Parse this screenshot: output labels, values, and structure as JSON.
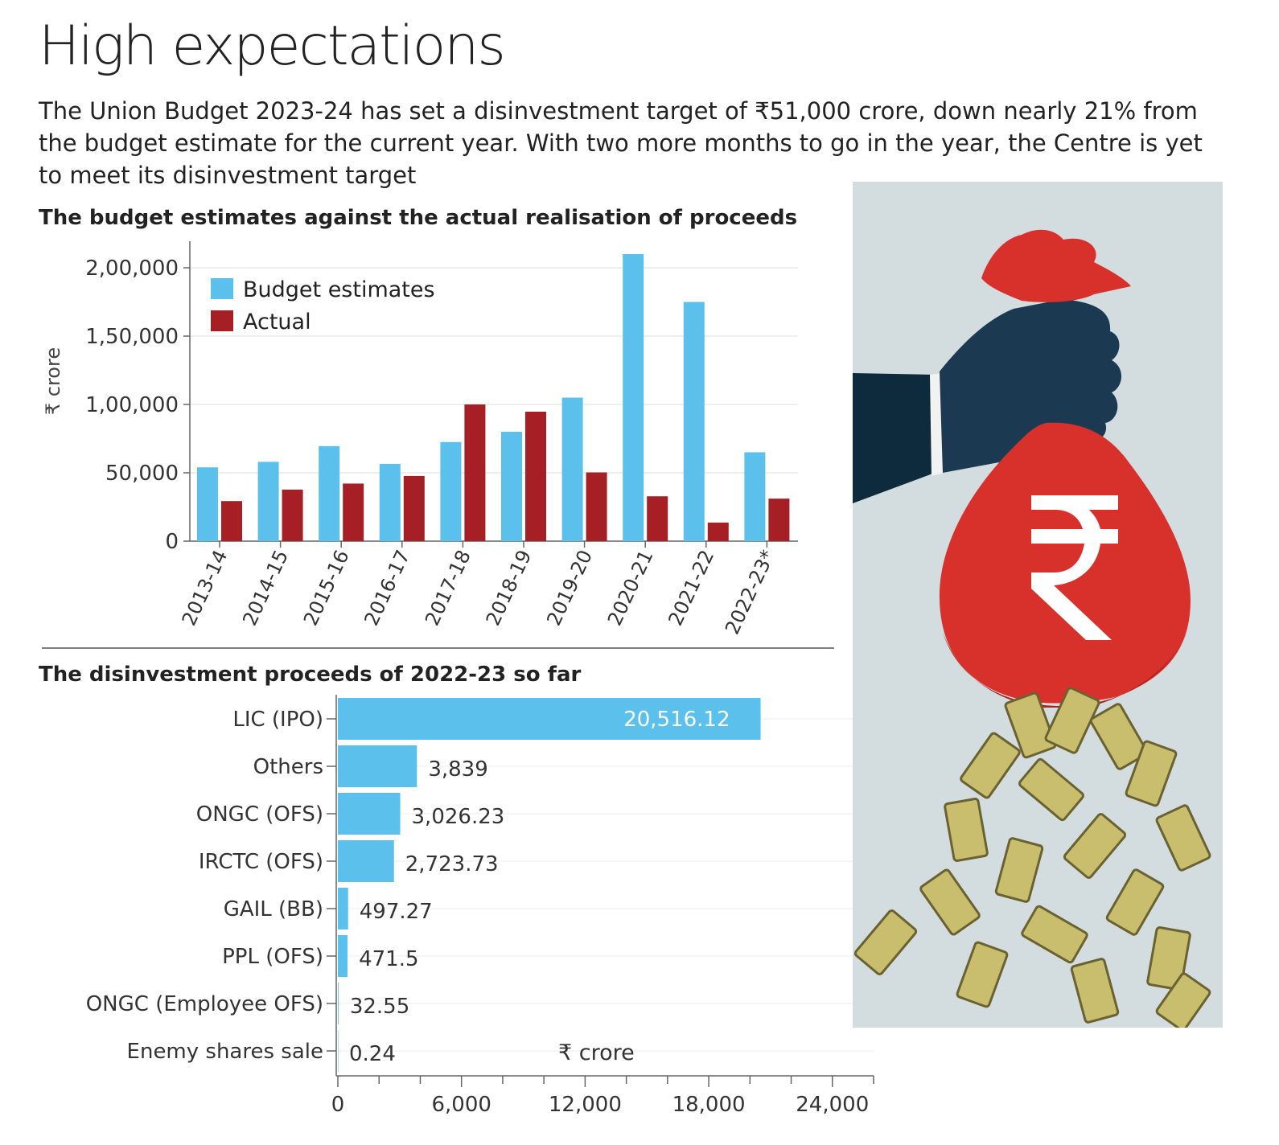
{
  "header": {
    "title": "High expectations",
    "subtitle": "The Union Budget 2023-24 has set a disinvestment target of ₹51,000 crore, down nearly 21% from the budget estimate for the current year.  With two more months to go in the year, the Centre is yet to meet its disinvestment target"
  },
  "colors": {
    "budget": "#5bc0eb",
    "actual": "#a51f24",
    "hbar": "#5bc0eb",
    "illus_bg": "#d3dddf",
    "bag": "#d8312c",
    "sleeve": "#0e2a3d",
    "hand": "#1b3a52",
    "money": "#c9bd6e"
  },
  "chart_data": [
    {
      "type": "bar",
      "title": "The budget estimates against the actual realisation of proceeds",
      "ylabel": "₹ crore",
      "xlabel": "",
      "categories": [
        "2013-14",
        "2014-15",
        "2015-16",
        "2016-17",
        "2017-18",
        "2018-19",
        "2019-20",
        "2020-21",
        "2021-22",
        "2022-23*"
      ],
      "series": [
        {
          "name": "Budget estimates",
          "values": [
            54000,
            58000,
            69500,
            56500,
            72500,
            80000,
            105000,
            210000,
            175000,
            65000
          ]
        },
        {
          "name": "Actual",
          "values": [
            29300,
            37700,
            42100,
            47700,
            100000,
            94700,
            50300,
            32800,
            13600,
            31100
          ]
        }
      ],
      "ylim": [
        0,
        210000
      ],
      "yticks": [
        0,
        50000,
        100000,
        150000,
        200000
      ],
      "ytick_labels": [
        "0",
        "50,000",
        "1,00,000",
        "1,50,000",
        "2,00,000"
      ],
      "grid": true,
      "legend": "top-left"
    },
    {
      "type": "bar",
      "orientation": "horizontal",
      "title": "The disinvestment proceeds of 2022-23 so far",
      "unit_label": "₹ crore",
      "categories": [
        "LIC (IPO)",
        "Others",
        "ONGC (OFS)",
        "IRCTC (OFS)",
        "GAIL (BB)",
        "PPL (OFS)",
        "ONGC (Employee OFS)",
        "Enemy shares sale"
      ],
      "values": [
        20516.12,
        3839,
        3026.23,
        2723.73,
        497.27,
        471.5,
        32.55,
        0.24
      ],
      "value_labels": [
        "20,516.12",
        "3,839",
        "3,026.23",
        "2,723.73",
        "497.27",
        "471.5",
        "32.55",
        "0.24"
      ],
      "xlim": [
        0,
        26000
      ],
      "xticks": [
        0,
        6000,
        12000,
        18000,
        24000
      ],
      "xtick_labels": [
        "0",
        "6,000",
        "12,000",
        "18,000",
        "24,000"
      ],
      "grid": true
    }
  ]
}
